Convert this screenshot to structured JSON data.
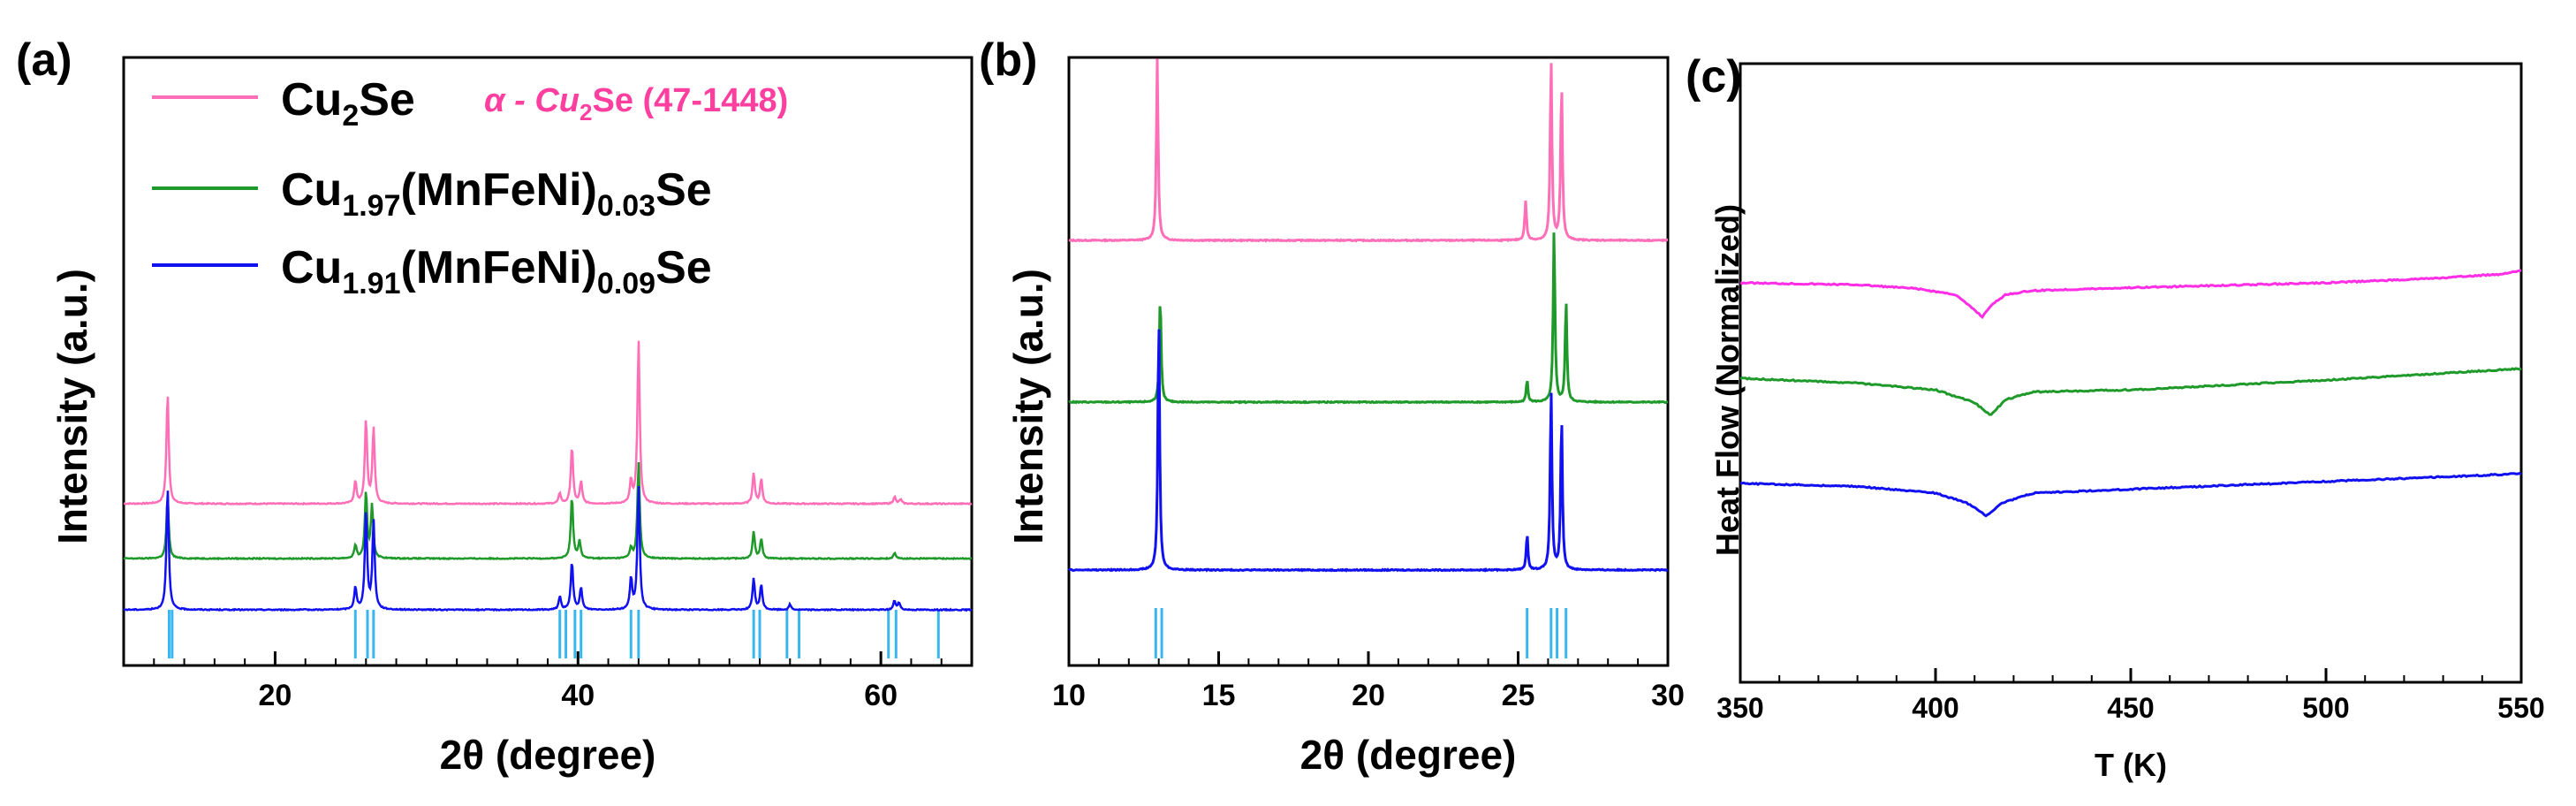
{
  "colors": {
    "pink": "#ff6fb8",
    "magenta": "#ff2ee6",
    "green": "#1f9a2a",
    "blue": "#1010f0",
    "reference": "#39b6f0",
    "ref_label": "#ff3fa0"
  },
  "chart_data": [
    {
      "panel": "(a)",
      "type": "line",
      "xlabel": "2θ (degree)",
      "ylabel": "Intensity (a.u.)",
      "xlim": [
        10,
        66
      ],
      "xticks": [
        20,
        40,
        60
      ],
      "legend": {
        "entries": [
          {
            "name": "Cu2Se",
            "base": "Cu",
            "sub1": "2",
            "mid": "Se",
            "sub2": "",
            "tail": ""
          },
          {
            "name": "Cu1.97(MnFeNi)0.03Se",
            "base": "Cu",
            "sub1": "1.97",
            "mid": "(MnFeNi)",
            "sub2": "0.03",
            "tail": "Se"
          },
          {
            "name": "Cu1.91(MnFeNi)0.09Se",
            "base": "Cu",
            "sub1": "1.91",
            "mid": "(MnFeNi)",
            "sub2": "0.09",
            "tail": "Se"
          }
        ],
        "reference_label": {
          "prefix": "α - Cu",
          "sub": "2",
          "suffix": "Se (47-1448)"
        }
      },
      "reference_lines": [
        13.0,
        13.2,
        25.3,
        26.1,
        26.5,
        38.8,
        39.2,
        39.8,
        40.2,
        43.5,
        44.0,
        51.6,
        52.0,
        53.8,
        54.6,
        60.5,
        61.0,
        63.8
      ],
      "series": [
        {
          "name": "Cu2Se",
          "color_key": "pink",
          "peaks": [
            [
              12.9,
              125
            ],
            [
              25.3,
              25
            ],
            [
              26.0,
              95
            ],
            [
              26.5,
              85
            ],
            [
              38.8,
              12
            ],
            [
              39.6,
              65
            ],
            [
              40.2,
              25
            ],
            [
              43.5,
              25
            ],
            [
              44.0,
              185
            ],
            [
              51.6,
              35
            ],
            [
              52.1,
              28
            ],
            [
              60.9,
              8
            ],
            [
              61.3,
              5
            ]
          ]
        },
        {
          "name": "Cu1.97(MnFeNi)0.03Se",
          "color_key": "green",
          "peaks": [
            [
              12.9,
              70
            ],
            [
              25.3,
              15
            ],
            [
              26.0,
              75
            ],
            [
              26.4,
              60
            ],
            [
              39.6,
              70
            ],
            [
              40.1,
              20
            ],
            [
              43.5,
              12
            ],
            [
              44.0,
              110
            ],
            [
              51.6,
              30
            ],
            [
              52.1,
              22
            ],
            [
              60.9,
              6
            ]
          ]
        },
        {
          "name": "Cu1.91(MnFeNi)0.09Se",
          "color_key": "blue",
          "peaks": [
            [
              12.9,
              140
            ],
            [
              25.3,
              25
            ],
            [
              26.0,
              110
            ],
            [
              26.5,
              100
            ],
            [
              38.8,
              15
            ],
            [
              39.6,
              55
            ],
            [
              40.2,
              25
            ],
            [
              43.5,
              35
            ],
            [
              44.0,
              140
            ],
            [
              51.6,
              35
            ],
            [
              52.1,
              28
            ],
            [
              54.0,
              6
            ],
            [
              60.9,
              10
            ],
            [
              61.2,
              8
            ]
          ]
        }
      ]
    },
    {
      "panel": "(b)",
      "type": "line",
      "xlabel": "2θ (degree)",
      "ylabel": "Intensity (a.u.)",
      "xlim": [
        10,
        30
      ],
      "xticks": [
        10,
        15,
        20,
        25,
        30
      ],
      "reference_lines": [
        12.9,
        13.1,
        25.3,
        26.1,
        26.3,
        26.6
      ],
      "series": [
        {
          "name": "Cu2Se",
          "color_key": "pink",
          "peaks": [
            [
              12.95,
              205
            ],
            [
              25.25,
              45
            ],
            [
              26.1,
              205
            ],
            [
              26.45,
              180
            ]
          ]
        },
        {
          "name": "Cu1.97(MnFeNi)0.03Se",
          "color_key": "green",
          "peaks": [
            [
              13.05,
              120
            ],
            [
              25.3,
              25
            ],
            [
              26.2,
              195
            ],
            [
              26.6,
              115
            ]
          ]
        },
        {
          "name": "Cu1.91(MnFeNi)0.09Se",
          "color_key": "blue",
          "peaks": [
            [
              13.0,
              290
            ],
            [
              25.3,
              40
            ],
            [
              26.1,
              205
            ],
            [
              26.45,
              175
            ]
          ]
        }
      ]
    },
    {
      "panel": "(c)",
      "type": "line",
      "xlabel": "T (K)",
      "ylabel": "Heat Flow (Normalized)",
      "xlim": [
        350,
        550
      ],
      "xticks": [
        350,
        400,
        450,
        500,
        550
      ],
      "series": [
        {
          "name": "Cu2Se",
          "color_key": "magenta",
          "points": [
            [
              350,
              0.0
            ],
            [
              380,
              0.02
            ],
            [
              395,
              0.06
            ],
            [
              405,
              0.12
            ],
            [
              410,
              0.28
            ],
            [
              412,
              0.35
            ],
            [
              414,
              0.24
            ],
            [
              418,
              0.12
            ],
            [
              425,
              0.08
            ],
            [
              450,
              0.05
            ],
            [
              500,
              0.0
            ],
            [
              530,
              -0.05
            ],
            [
              545,
              -0.09
            ],
            [
              550,
              -0.13
            ]
          ]
        },
        {
          "name": "Cu1.97(MnFeNi)0.03Se",
          "color_key": "green",
          "points": [
            [
              350,
              0.0
            ],
            [
              380,
              0.05
            ],
            [
              400,
              0.12
            ],
            [
              410,
              0.25
            ],
            [
              414,
              0.38
            ],
            [
              418,
              0.22
            ],
            [
              425,
              0.14
            ],
            [
              450,
              0.12
            ],
            [
              500,
              0.02
            ],
            [
              550,
              -0.1
            ]
          ]
        },
        {
          "name": "Cu1.91(MnFeNi)0.09Se",
          "color_key": "blue",
          "points": [
            [
              350,
              0.0
            ],
            [
              380,
              0.03
            ],
            [
              400,
              0.1
            ],
            [
              408,
              0.2
            ],
            [
              413,
              0.33
            ],
            [
              417,
              0.2
            ],
            [
              425,
              0.1
            ],
            [
              450,
              0.06
            ],
            [
              500,
              -0.02
            ],
            [
              550,
              -0.1
            ]
          ]
        }
      ]
    }
  ]
}
